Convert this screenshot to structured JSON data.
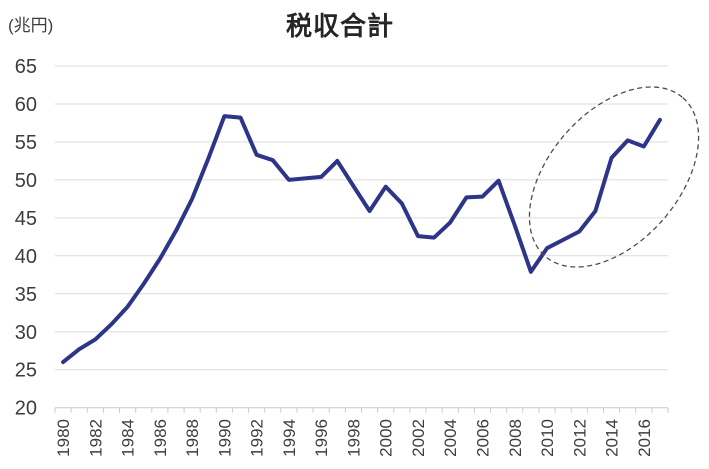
{
  "chart": {
    "title": "税収合計",
    "unit_label": "(兆円)"
  },
  "chart_data": {
    "type": "line",
    "title": "税収合計",
    "ylabel": "(兆円)",
    "x": [
      1980,
      1981,
      1982,
      1983,
      1984,
      1985,
      1986,
      1987,
      1988,
      1989,
      1990,
      1991,
      1992,
      1993,
      1994,
      1995,
      1996,
      1997,
      1998,
      1999,
      2000,
      2001,
      2002,
      2003,
      2004,
      2005,
      2006,
      2007,
      2008,
      2009,
      2010,
      2011,
      2012,
      2013,
      2014,
      2015,
      2016,
      2017
    ],
    "values": [
      26.0,
      27.7,
      29.0,
      31.0,
      33.3,
      36.3,
      39.6,
      43.3,
      47.5,
      52.8,
      58.4,
      58.2,
      53.3,
      52.6,
      50.0,
      50.2,
      50.4,
      52.5,
      49.2,
      45.9,
      49.1,
      46.9,
      42.6,
      42.4,
      44.4,
      47.7,
      47.8,
      49.9,
      44.0,
      37.9,
      41.0,
      42.1,
      43.2,
      45.9,
      52.9,
      55.2,
      54.4,
      57.9
    ],
    "ylim": [
      20,
      65
    ],
    "ytick_step": 5,
    "x_tick_labels": [
      "1980",
      "1982",
      "1984",
      "1986",
      "1988",
      "1990",
      "1992",
      "1994",
      "1996",
      "1998",
      "2000",
      "2002",
      "2004",
      "2006",
      "2008",
      "2010",
      "2012",
      "2014",
      "2016"
    ],
    "xlabel_every": 2,
    "grid": "horizontal",
    "legend": "none",
    "line_color": "#2e3487",
    "grid_color": "#dcdcdc",
    "axis_color": "#c9c9c9",
    "text_color": "#3d3d3d",
    "annotation": {
      "shape": "dashed-ellipse",
      "highlights_years": "2010-2017",
      "cx": 614,
      "cy": 177,
      "rx": 105,
      "ry": 65,
      "rotation_deg": -49,
      "color": "#4d4d4d"
    }
  }
}
